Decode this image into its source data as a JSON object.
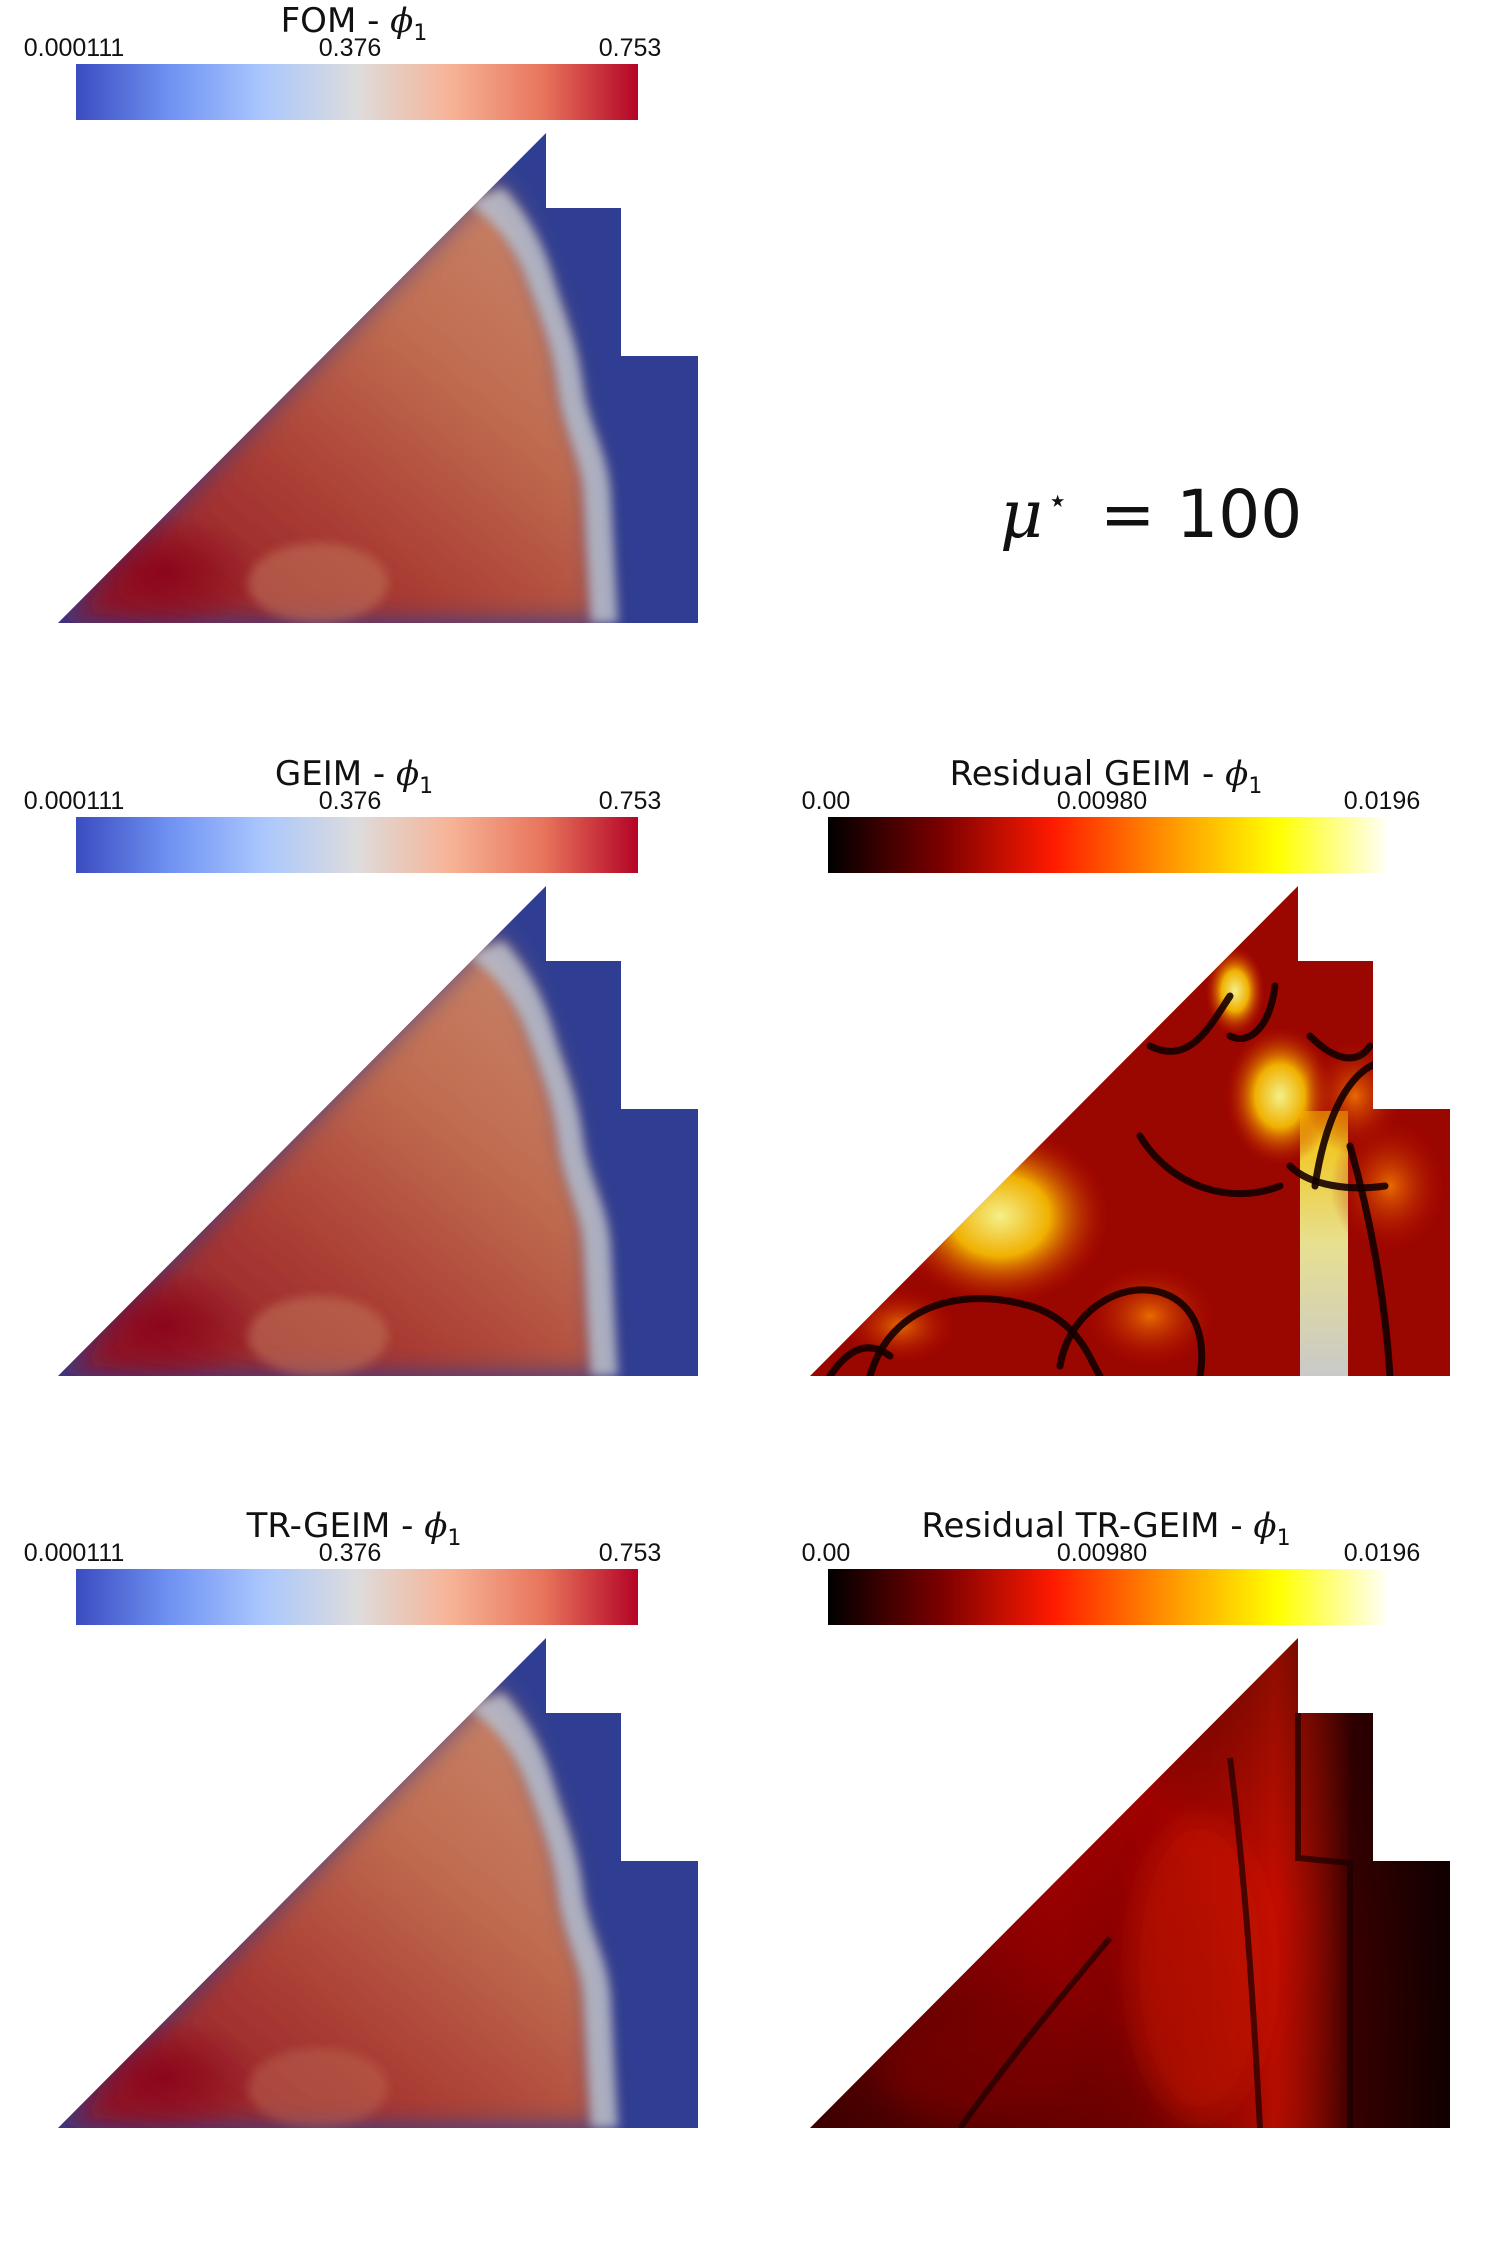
{
  "colormaps": {
    "coolwarm": [
      "#3b4cc0",
      "#6f92f3",
      "#aac7fd",
      "#dddcdc",
      "#f7b396",
      "#e7745b",
      "#b40426"
    ],
    "hot": [
      "#000000",
      "#7a0000",
      "#ff1a00",
      "#ff9100",
      "#ffff00",
      "#ffffff"
    ]
  },
  "field_colors": {
    "cold": "#2f3e92",
    "warm": "#bf6b50",
    "hot": "#8c0a1e",
    "transition": "#b8c0cc"
  },
  "parameter": {
    "symbol": "μ",
    "superscript": "⋆",
    "relation": "= 100"
  },
  "panels": [
    {
      "id": "fom",
      "title": "FOM - ",
      "symbol": "ϕ",
      "subscript": "1",
      "colormap": "coolwarm",
      "range": {
        "min": "0.000111",
        "mid": "0.376",
        "max": "0.753"
      }
    },
    {
      "id": "geim",
      "title": "GEIM - ",
      "symbol": "ϕ",
      "subscript": "1",
      "colormap": "coolwarm",
      "range": {
        "min": "0.000111",
        "mid": "0.376",
        "max": "0.753"
      }
    },
    {
      "id": "res-geim",
      "title": "Residual GEIM - ",
      "symbol": "ϕ",
      "subscript": "1",
      "colormap": "hot",
      "range": {
        "min": "0.00",
        "mid": "0.00980",
        "max": "0.0196"
      }
    },
    {
      "id": "trgeim",
      "title": "TR-GEIM - ",
      "symbol": "ϕ",
      "subscript": "1",
      "colormap": "coolwarm",
      "range": {
        "min": "0.000111",
        "mid": "0.376",
        "max": "0.753"
      }
    },
    {
      "id": "res-trgeim",
      "title": "Residual TR-GEIM - ",
      "symbol": "ϕ",
      "subscript": "1",
      "colormap": "hot",
      "range": {
        "min": "0.00",
        "mid": "0.00980",
        "max": "0.0196"
      }
    }
  ]
}
